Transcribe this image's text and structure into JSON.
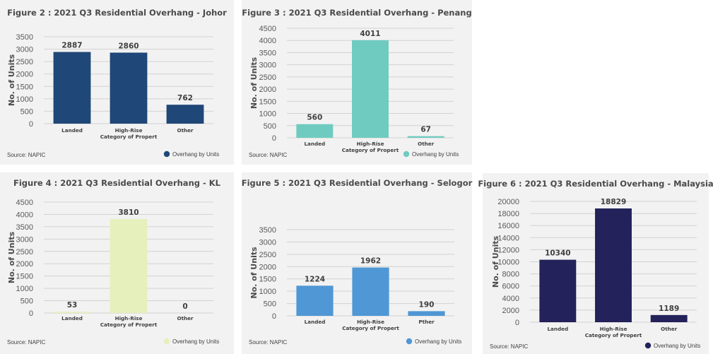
{
  "chart_data": [
    {
      "id": "johor",
      "type": "bar",
      "title": "Figure 2 : 2021 Q3 Residential Overhang - Johor",
      "xlabel": "Category of Propert",
      "ylabel": "No. of Units",
      "categories": [
        "Landed",
        "High-Rise",
        "Other"
      ],
      "series": [
        {
          "name": "Overhang by Units",
          "values": [
            2887,
            2860,
            762
          ],
          "color": "#1f4778"
        }
      ],
      "value_labels": [
        "2887",
        "2860",
        "762"
      ],
      "ylim": [
        0,
        3500
      ],
      "yticks": [
        0,
        500,
        1000,
        1500,
        2000,
        2500,
        3000,
        3500
      ],
      "grid": true,
      "legend": "bottom-right",
      "source": "Source: NAPIC"
    },
    {
      "id": "penang",
      "type": "bar",
      "title": "Figure 3 : 2021 Q3 Residential Overhang - Penang",
      "xlabel": "Category of Propert",
      "ylabel": "No. of Units",
      "categories": [
        "Landed",
        "High-Rise",
        "Other"
      ],
      "series": [
        {
          "name": "Overhang by Units",
          "values": [
            560,
            4011,
            67
          ],
          "color": "#6fcbc0"
        }
      ],
      "value_labels": [
        "560",
        "4011",
        "67"
      ],
      "ylim": [
        0,
        4500
      ],
      "yticks": [
        0,
        500,
        1000,
        1500,
        2000,
        2500,
        3000,
        3500,
        4000,
        4500
      ],
      "grid": true,
      "legend": "bottom-right",
      "source": "Source: NAPIC"
    },
    {
      "id": "kl",
      "type": "bar",
      "title": "Figure 4 : 2021 Q3 Residential Overhang - KL",
      "xlabel": "Category of Propert",
      "ylabel": "No. of Units",
      "categories": [
        "Landed",
        "High-Rise",
        "Other"
      ],
      "series": [
        {
          "name": "Overhang by Units",
          "values": [
            53,
            3810,
            0
          ],
          "color": "#e5f0bd"
        }
      ],
      "value_labels": [
        "53",
        "3810",
        "0"
      ],
      "ylim": [
        0,
        4500
      ],
      "yticks": [
        0,
        500,
        1000,
        1500,
        2000,
        2500,
        3000,
        3500,
        4000,
        4500
      ],
      "grid": true,
      "legend": "bottom-right",
      "source": "Source: NAPIC"
    },
    {
      "id": "selangor",
      "type": "bar",
      "title": "Figure 5 : 2021 Q3 Residential Overhang - Selogor",
      "xlabel": "Category of Propert",
      "ylabel": "No. of Units",
      "categories": [
        "Landed",
        "High-Rise",
        "Pther"
      ],
      "series": [
        {
          "name": "Overhang by Units",
          "values": [
            1224,
            1962,
            190
          ],
          "color": "#4f97d5"
        }
      ],
      "value_labels": [
        "1224",
        "1962",
        "190"
      ],
      "ylim": [
        0,
        3500
      ],
      "yticks": [
        0,
        500,
        1000,
        1500,
        2000,
        2500,
        3000,
        3500
      ],
      "grid": true,
      "legend": "bottom-right",
      "source": "Source: NAPIC"
    },
    {
      "id": "malaysia",
      "type": "bar",
      "title": "Figure 6 : 2021 Q3 Residential Overhang - Malaysia",
      "xlabel": "Category of Propert",
      "ylabel": "No. of Units",
      "categories": [
        "Landed",
        "High-Rise",
        "Other"
      ],
      "series": [
        {
          "name": "Overhang by Units",
          "values": [
            10340,
            18829,
            1189
          ],
          "color": "#23225a"
        }
      ],
      "value_labels": [
        "10340",
        "18829",
        "1189"
      ],
      "ylim": [
        0,
        20000
      ],
      "yticks": [
        0,
        2000,
        4000,
        6000,
        8000,
        10000,
        12000,
        14000,
        16000,
        18000,
        20000
      ],
      "grid": true,
      "legend": "bottom-right",
      "source": "Source: NAPIC"
    }
  ]
}
